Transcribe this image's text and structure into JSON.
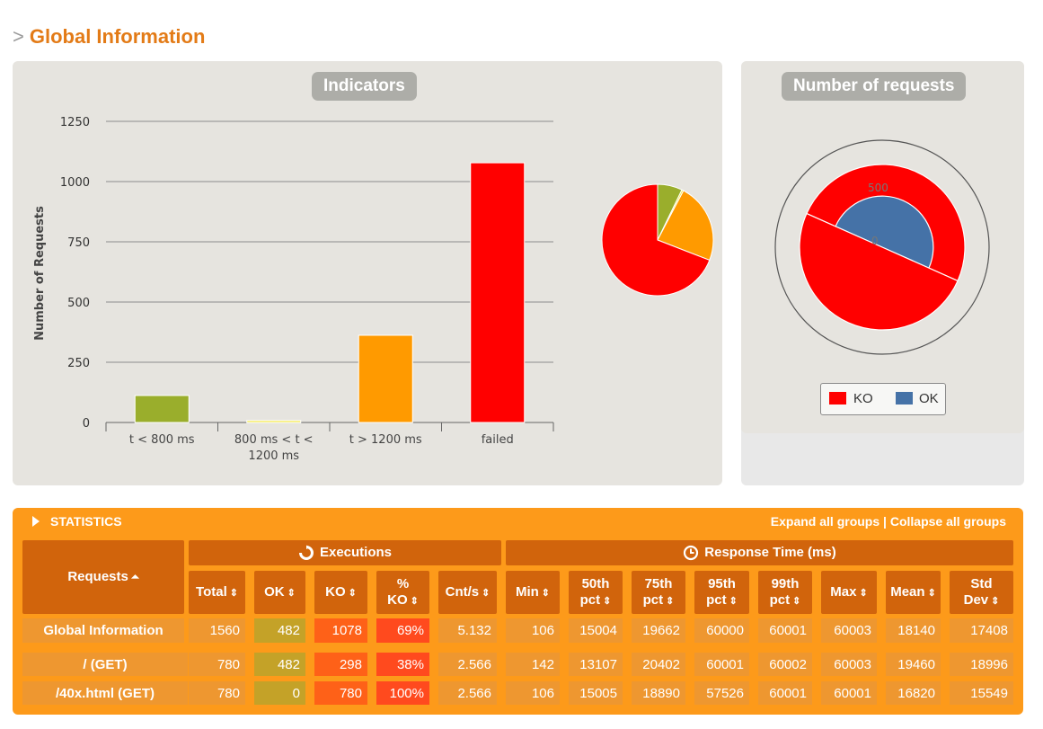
{
  "page": {
    "title": "Global Information",
    "arrow": ">"
  },
  "indicators": {
    "title": "Indicators"
  },
  "requests_panel": {
    "title": "Number of requests"
  },
  "colors": {
    "green": "#9aae2c",
    "yellow": "#f5e839",
    "orange": "#ff9a00",
    "red": "#ff0000",
    "blue": "#4572a7"
  },
  "chart_data": [
    {
      "type": "bar",
      "title": "Indicators",
      "ylabel": "Number of Requests",
      "xlabel": "",
      "categories": [
        "t < 800 ms",
        "800 ms < t < 1200 ms",
        "t > 1200 ms",
        "failed"
      ],
      "category_lines": [
        [
          "t < 800 ms"
        ],
        [
          "800 ms < t <",
          "1200 ms"
        ],
        [
          "t > 1200 ms"
        ],
        [
          "failed"
        ]
      ],
      "values": [
        112,
        8,
        362,
        1078
      ],
      "colors": [
        "#9aae2c",
        "#f5e839",
        "#ff9a00",
        "#ff0000"
      ],
      "ylim": [
        0,
        1250
      ],
      "yticks": [
        0,
        250,
        500,
        750,
        1000,
        1250
      ],
      "grid": true
    },
    {
      "type": "pie",
      "values": [
        112,
        8,
        362,
        1078
      ],
      "colors": [
        "#9aae2c",
        "#f5e839",
        "#ff9a00",
        "#ff0000"
      ]
    },
    {
      "type": "pie",
      "title": "Number of requests",
      "categories": [
        "/ (GET)",
        "/40x.html (GET)"
      ],
      "series": [
        {
          "name": "KO",
          "values": [
            298,
            780
          ],
          "color": "#ff0000"
        },
        {
          "name": "OK",
          "values": [
            482,
            0
          ],
          "color": "#4572a7"
        }
      ],
      "ylim": [
        0,
        1000
      ],
      "tick_labels": [
        "0",
        "500"
      ],
      "legend": {
        "position": "bottom"
      }
    }
  ],
  "statistics": {
    "title": "STATISTICS",
    "expand_label": "Expand all groups",
    "separator": "|",
    "collapse_label": "Collapse all groups",
    "requests_header": "Requests",
    "sort_up_icon": "⏶",
    "sort_icon": "⇕",
    "executions_header": "Executions",
    "response_header": "Response Time (ms)",
    "exec_columns": [
      [
        "Total"
      ],
      [
        "OK"
      ],
      [
        "KO"
      ],
      [
        "%",
        "KO"
      ],
      [
        "Cnt/s"
      ]
    ],
    "resp_columns": [
      [
        "Min"
      ],
      [
        "50th",
        "pct"
      ],
      [
        "75th",
        "pct"
      ],
      [
        "95th",
        "pct"
      ],
      [
        "99th",
        "pct"
      ],
      [
        "Max"
      ],
      [
        "Mean"
      ],
      [
        "Std",
        "Dev"
      ]
    ],
    "rows": [
      {
        "name": "Global Information",
        "values": [
          "1560",
          "482",
          "1078",
          "69%",
          "5.132",
          "106",
          "15004",
          "19662",
          "60000",
          "60001",
          "60003",
          "18140",
          "17408"
        ]
      },
      {
        "name": "/ (GET)",
        "values": [
          "780",
          "482",
          "298",
          "38%",
          "2.566",
          "142",
          "13107",
          "20402",
          "60001",
          "60002",
          "60003",
          "19460",
          "18996"
        ]
      },
      {
        "name": "/40x.html (GET)",
        "values": [
          "780",
          "0",
          "780",
          "100%",
          "2.566",
          "106",
          "15005",
          "18890",
          "57526",
          "60001",
          "60001",
          "16820",
          "15549"
        ]
      }
    ]
  }
}
